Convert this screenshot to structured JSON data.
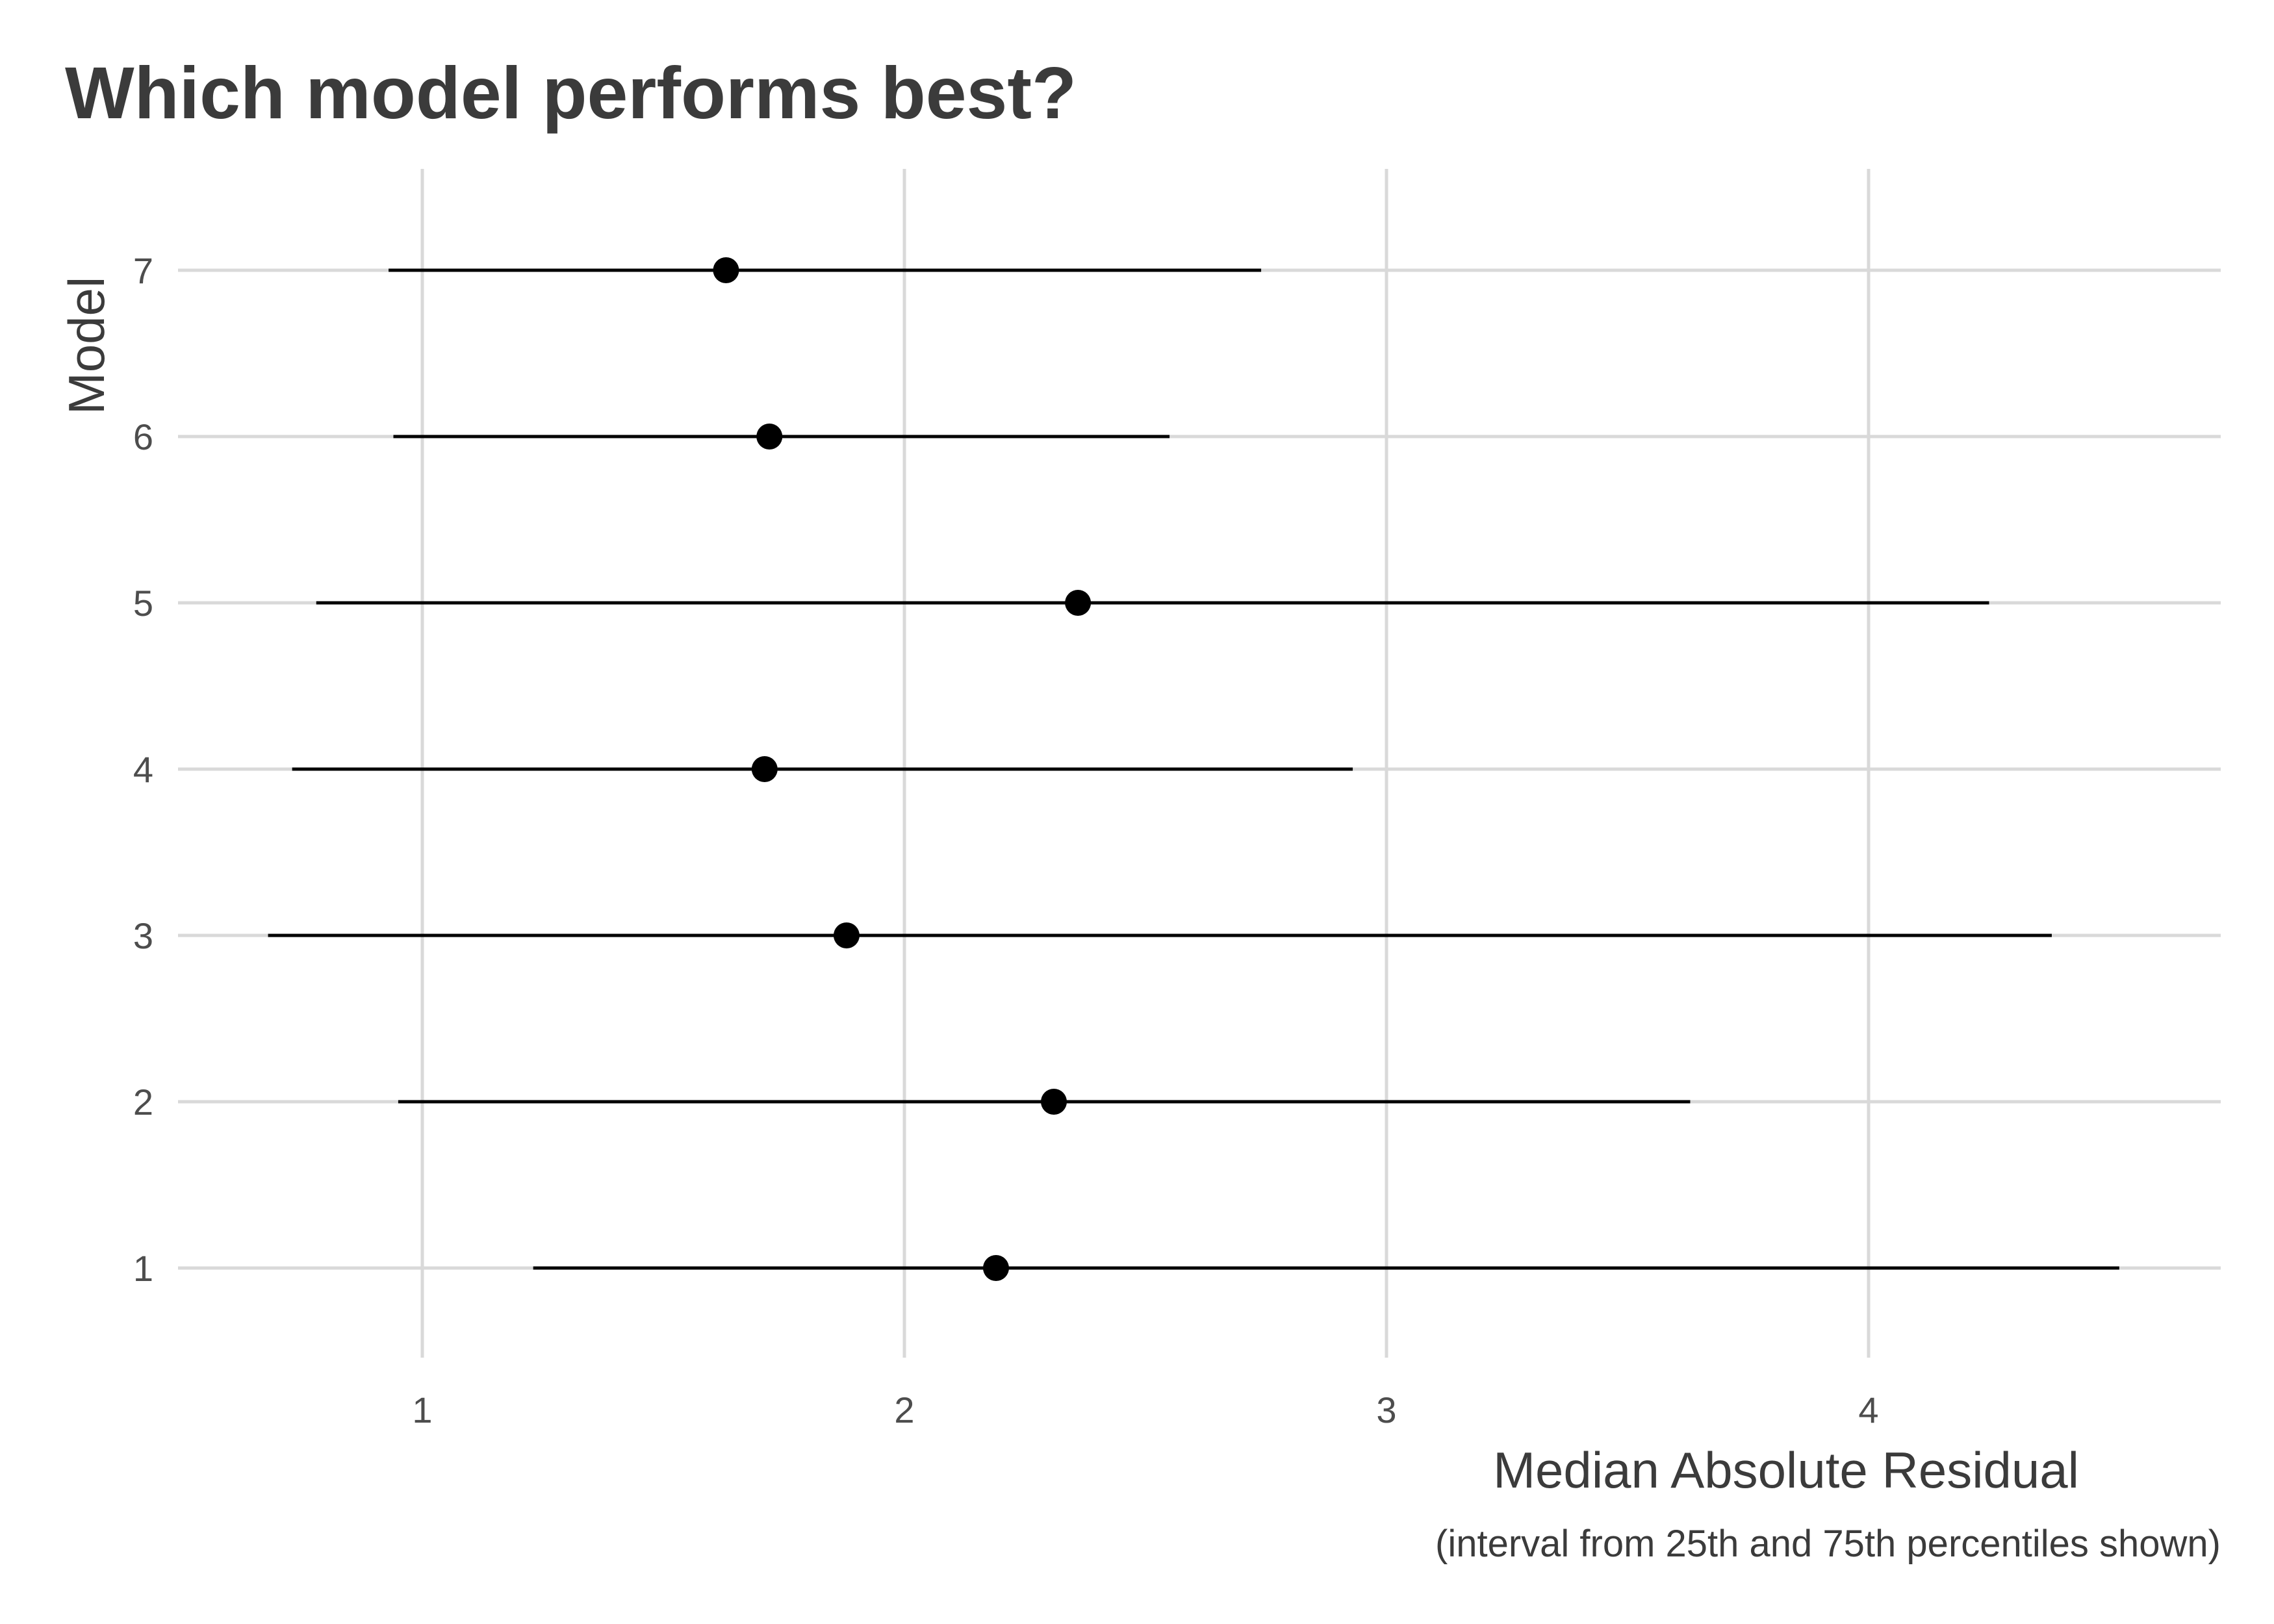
{
  "chart_data": {
    "type": "pointrange",
    "title": "Which model performs best?",
    "xlabel": "Median Absolute Residual",
    "caption": "(interval from 25th and 75th percentiles shown)",
    "ylabel": "Model",
    "xlim": [
      0.5,
      4.7
    ],
    "x_ticks": [
      1,
      2,
      3,
      4
    ],
    "categories": [
      "1",
      "2",
      "3",
      "4",
      "5",
      "6",
      "7"
    ],
    "points": [
      {
        "model": "1",
        "median": 2.19,
        "low": 1.23,
        "high": 4.52
      },
      {
        "model": "2",
        "median": 2.31,
        "low": 0.95,
        "high": 3.63
      },
      {
        "model": "3",
        "median": 1.88,
        "low": 0.68,
        "high": 4.38
      },
      {
        "model": "4",
        "median": 1.71,
        "low": 0.73,
        "high": 2.93
      },
      {
        "model": "5",
        "median": 2.36,
        "low": 0.78,
        "high": 4.25
      },
      {
        "model": "6",
        "median": 1.72,
        "low": 0.94,
        "high": 2.55
      },
      {
        "model": "7",
        "median": 1.63,
        "low": 0.93,
        "high": 2.74
      }
    ],
    "grid": true,
    "colors": {
      "grid": "#d9d9d9",
      "marks": "#000000",
      "text": "#4d4d4d"
    }
  }
}
